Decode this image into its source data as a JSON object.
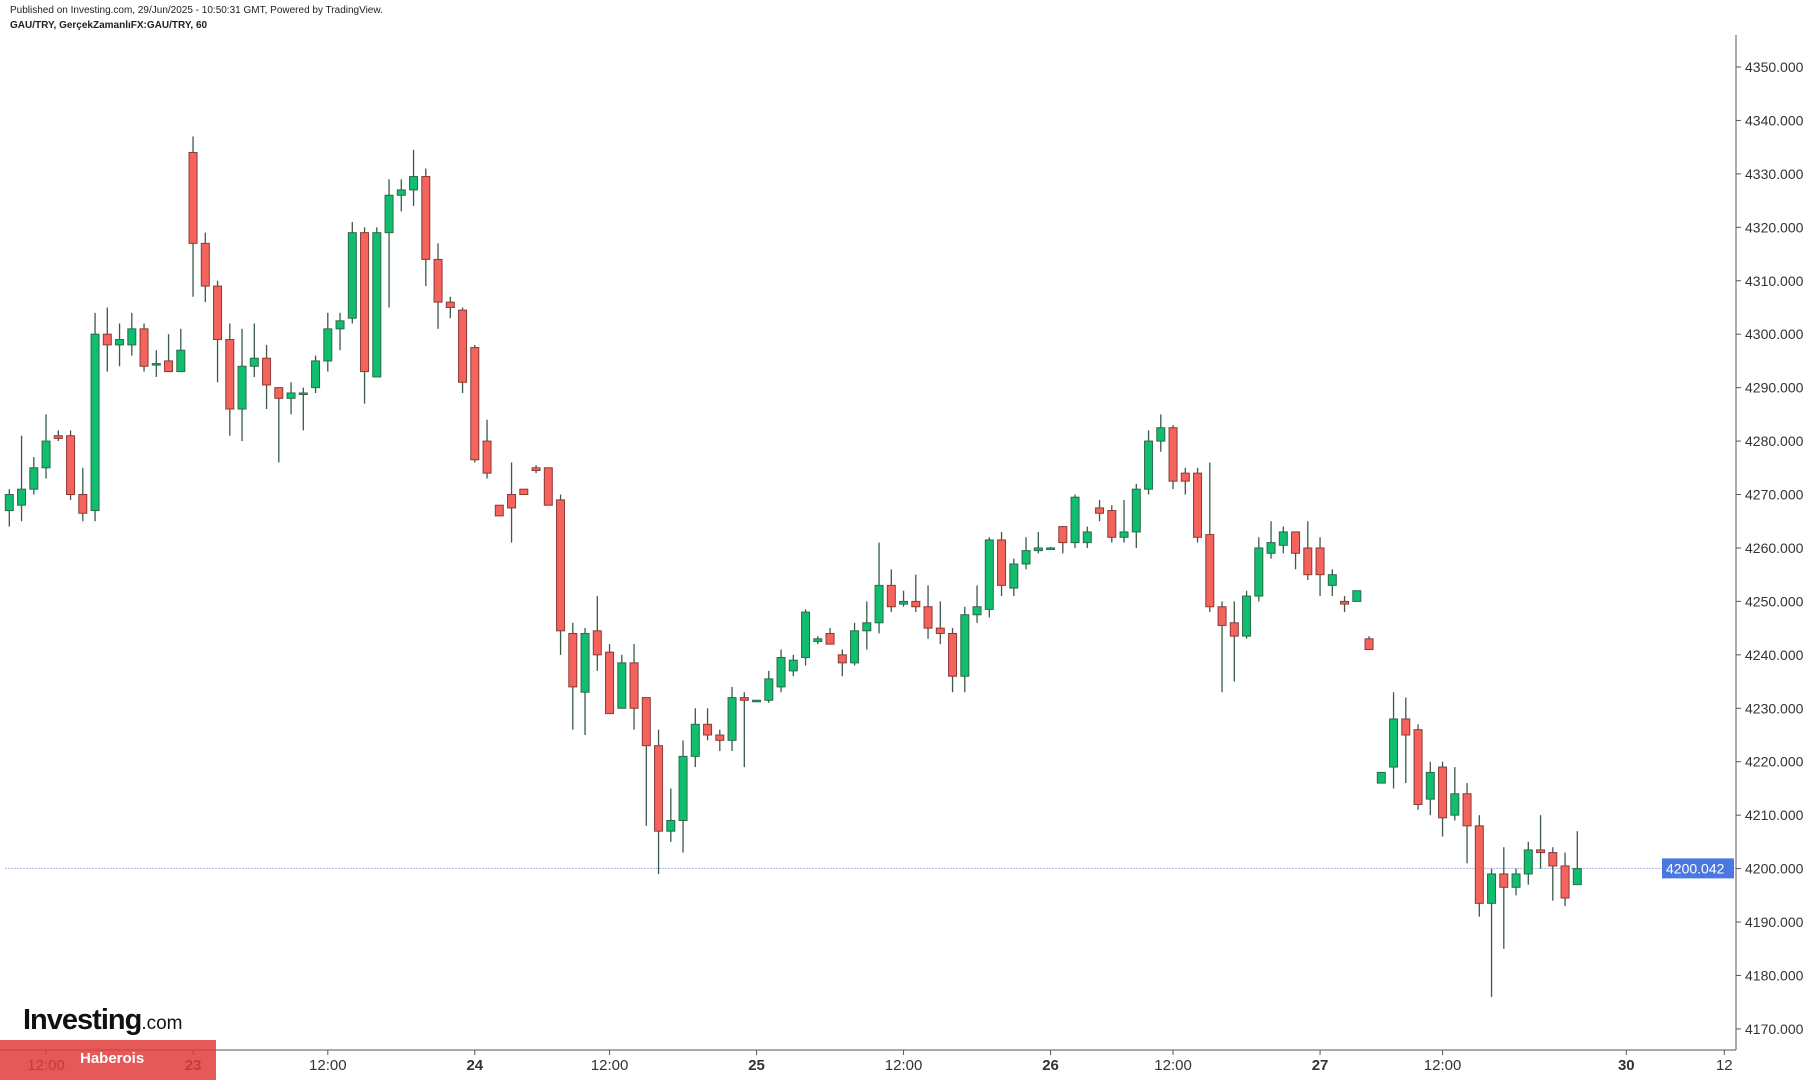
{
  "header": {
    "published": "Published on Investing.com, 29/Jun/2025 - 10:50:31 GMT, Powered by TradingView.",
    "symbol": "GAU/TRY, GerçekZamanlıFX:GAU/TRY, 60"
  },
  "logo": {
    "brand": "Investing",
    "suffix": ".com"
  },
  "watermark": "Haberois",
  "colors": {
    "up": "#0fbf6f",
    "down": "#f4645c",
    "wick": "#3a5a4a",
    "last_price": "#4a78e0"
  },
  "chart_data": {
    "type": "candlestick",
    "title": "GAU/TRY, 60",
    "ylim": [
      4165,
      4355
    ],
    "y_ticks": [
      "4350.000",
      "4340.000",
      "4330.000",
      "4320.000",
      "4310.000",
      "4300.000",
      "4290.000",
      "4280.000",
      "4270.000",
      "4260.000",
      "4250.000",
      "4240.000",
      "4230.000",
      "4220.000",
      "4210.000",
      "4200.000",
      "4190.000",
      "4180.000",
      "4170.000"
    ],
    "y_tick_values": [
      4350,
      4340,
      4330,
      4320,
      4310,
      4300,
      4290,
      4280,
      4270,
      4260,
      4250,
      4240,
      4230,
      4220,
      4210,
      4200,
      4190,
      4180,
      4170
    ],
    "last_price": 4200.042,
    "last_price_label": "4200.042",
    "x_ticks": [
      {
        "label": "12:00",
        "index": 3,
        "bold": false
      },
      {
        "label": "23",
        "index": 15,
        "bold": true
      },
      {
        "label": "12:00",
        "index": 26,
        "bold": false
      },
      {
        "label": "24",
        "index": 38,
        "bold": true
      },
      {
        "label": "12:00",
        "index": 49,
        "bold": false
      },
      {
        "label": "25",
        "index": 61,
        "bold": true
      },
      {
        "label": "12:00",
        "index": 73,
        "bold": false
      },
      {
        "label": "26",
        "index": 85,
        "bold": true
      },
      {
        "label": "12:00",
        "index": 95,
        "bold": false
      },
      {
        "label": "27",
        "index": 107,
        "bold": true
      },
      {
        "label": "12:00",
        "index": 117,
        "bold": false
      },
      {
        "label": "30",
        "index": 132,
        "bold": true
      },
      {
        "label": "12",
        "index": 140,
        "bold": false
      }
    ],
    "ohlc": [
      [
        4267,
        4271,
        4264,
        4270
      ],
      [
        4268,
        4281,
        4265,
        4271
      ],
      [
        4271,
        4277,
        4270,
        4275
      ],
      [
        4275,
        4285,
        4273,
        4280
      ],
      [
        4281,
        4282,
        4280,
        4280.5
      ],
      [
        4281,
        4282,
        4269,
        4270
      ],
      [
        4270,
        4275,
        4265,
        4266.5
      ],
      [
        4267,
        4304,
        4265,
        4300
      ],
      [
        4300,
        4305,
        4293,
        4298
      ],
      [
        4298,
        4302,
        4294,
        4299
      ],
      [
        4298,
        4304,
        4296,
        4301
      ],
      [
        4301,
        4302,
        4293,
        4294
      ],
      [
        4294.5,
        4297,
        4292,
        4294.5
      ],
      [
        4295,
        4300,
        4293,
        4293
      ],
      [
        4293,
        4301,
        4293,
        4297
      ],
      [
        4334,
        4337,
        4307,
        4317
      ],
      [
        4317,
        4319,
        4306,
        4309
      ],
      [
        4309,
        4310,
        4291,
        4299
      ],
      [
        4299,
        4302,
        4281,
        4286
      ],
      [
        4286,
        4301,
        4280,
        4294
      ],
      [
        4294,
        4302,
        4292,
        4295.5
      ],
      [
        4295.5,
        4298,
        4286,
        4290.5
      ],
      [
        4290,
        4290,
        4276,
        4288
      ],
      [
        4288,
        4291,
        4285,
        4289
      ],
      [
        4289,
        4290,
        4282,
        4289
      ],
      [
        4290,
        4296,
        4289,
        4295
      ],
      [
        4295,
        4304,
        4293,
        4301
      ],
      [
        4301,
        4304,
        4297,
        4302.5
      ],
      [
        4303,
        4321,
        4302,
        4319
      ],
      [
        4319,
        4320,
        4287,
        4293
      ],
      [
        4292,
        4320,
        4292,
        4319
      ],
      [
        4319,
        4329,
        4305,
        4326
      ],
      [
        4326,
        4329,
        4323,
        4327
      ],
      [
        4327,
        4334.5,
        4324,
        4329.5
      ],
      [
        4329.5,
        4331,
        4309,
        4314
      ],
      [
        4314,
        4317,
        4301,
        4306
      ],
      [
        4306,
        4307,
        4303,
        4305
      ],
      [
        4304.5,
        4305,
        4289,
        4291
      ],
      [
        4297.5,
        4298,
        4276,
        4276.5
      ],
      [
        4280,
        4284,
        4273,
        4274
      ],
      [
        4268,
        4268,
        4266,
        4266
      ],
      [
        4270,
        4276,
        4261,
        4267.5
      ],
      [
        4271,
        4271,
        4270,
        4270
      ],
      [
        4275,
        4275.5,
        4274,
        4274.5
      ],
      [
        4275,
        4275,
        4268,
        4268
      ],
      [
        4269,
        4270,
        4240,
        4244.5
      ],
      [
        4244,
        4246,
        4226,
        4234
      ],
      [
        4233,
        4245,
        4225,
        4244
      ],
      [
        4244.5,
        4251,
        4237,
        4240
      ],
      [
        4240.5,
        4242,
        4229,
        4229
      ],
      [
        4230,
        4240,
        4230,
        4238.5
      ],
      [
        4238.5,
        4242,
        4226,
        4230
      ],
      [
        4232,
        4232,
        4208,
        4223
      ],
      [
        4223,
        4226,
        4199,
        4207
      ],
      [
        4207,
        4215,
        4205,
        4209
      ],
      [
        4209,
        4224,
        4203,
        4221
      ],
      [
        4221,
        4230,
        4219,
        4227
      ],
      [
        4227,
        4230,
        4224,
        4225
      ],
      [
        4225,
        4226,
        4222,
        4224
      ],
      [
        4224,
        4234,
        4222,
        4232
      ],
      [
        4232,
        4233,
        4219,
        4231.5
      ],
      [
        4231.5,
        4231.6,
        4231.4,
        4231.5
      ],
      [
        4231.5,
        4237,
        4231,
        4235.5
      ],
      [
        4234,
        4241,
        4233,
        4239.5
      ],
      [
        4237,
        4240,
        4236,
        4239
      ],
      [
        4239.5,
        4248.5,
        4238,
        4248
      ],
      [
        4242.5,
        4243.5,
        4242,
        4243
      ],
      [
        4244,
        4245,
        4242,
        4242
      ],
      [
        4240,
        4241,
        4236,
        4238.5
      ],
      [
        4238.5,
        4246,
        4238,
        4244.5
      ],
      [
        4244.5,
        4250,
        4241,
        4246
      ],
      [
        4246,
        4261,
        4244,
        4253
      ],
      [
        4253,
        4256,
        4248,
        4249
      ],
      [
        4249.5,
        4252,
        4249,
        4250
      ],
      [
        4250,
        4255,
        4248,
        4249
      ],
      [
        4249,
        4253,
        4243,
        4245
      ],
      [
        4245,
        4250,
        4242,
        4244
      ],
      [
        4244,
        4245,
        4233,
        4236
      ],
      [
        4236,
        4249,
        4233,
        4247.5
      ],
      [
        4247.5,
        4253,
        4246,
        4249
      ],
      [
        4248.5,
        4262,
        4247,
        4261.5
      ],
      [
        4261.5,
        4263,
        4251,
        4253
      ],
      [
        4252.5,
        4258,
        4251,
        4257
      ],
      [
        4257,
        4262,
        4256,
        4259.5
      ],
      [
        4259.5,
        4263,
        4259,
        4260
      ],
      [
        4260,
        4260.2,
        4259.8,
        4260
      ],
      [
        4264,
        4264,
        4259,
        4261
      ],
      [
        4261,
        4270,
        4260,
        4269.5
      ],
      [
        4261,
        4264,
        4260,
        4263
      ],
      [
        4267.5,
        4269,
        4265,
        4266.5
      ],
      [
        4267,
        4268,
        4261,
        4262
      ],
      [
        4262,
        4269,
        4261,
        4263
      ],
      [
        4263,
        4272,
        4260,
        4271
      ],
      [
        4271,
        4282,
        4270,
        4280
      ],
      [
        4280,
        4285,
        4278,
        4282.5
      ],
      [
        4282.5,
        4283,
        4271,
        4272.5
      ],
      [
        4274,
        4275,
        4270,
        4272.5
      ],
      [
        4274,
        4275,
        4261,
        4262
      ],
      [
        4262.5,
        4276,
        4248,
        4249
      ],
      [
        4249,
        4250,
        4233,
        4245.5
      ],
      [
        4246,
        4250,
        4235,
        4243.5
      ],
      [
        4243.5,
        4252,
        4243,
        4251
      ],
      [
        4251,
        4262,
        4250,
        4260
      ],
      [
        4259,
        4265,
        4258,
        4261
      ],
      [
        4260.5,
        4264,
        4259,
        4263
      ],
      [
        4263,
        4263,
        4256,
        4259
      ],
      [
        4260,
        4265,
        4254,
        4255
      ],
      [
        4260,
        4262,
        4251,
        4255
      ],
      [
        4253,
        4256,
        4251,
        4255
      ],
      [
        4250,
        4251,
        4248,
        4249.5
      ],
      [
        4250,
        4252,
        4250,
        4252
      ],
      [
        4243,
        4243.5,
        4241,
        4241
      ],
      [
        4216,
        4218,
        4216,
        4218
      ],
      [
        4219,
        4233,
        4215,
        4228
      ],
      [
        4228,
        4232,
        4216,
        4225
      ],
      [
        4226,
        4227,
        4211,
        4212
      ],
      [
        4213,
        4220,
        4210,
        4218
      ],
      [
        4219,
        4220,
        4206,
        4209.5
      ],
      [
        4210,
        4219,
        4209,
        4214
      ],
      [
        4214,
        4216,
        4201,
        4208
      ],
      [
        4208,
        4210,
        4191,
        4193.5
      ],
      [
        4193.5,
        4200,
        4176,
        4199
      ],
      [
        4199,
        4204,
        4185,
        4196.5
      ],
      [
        4196.5,
        4200,
        4195,
        4199
      ],
      [
        4199,
        4205,
        4197,
        4203.5
      ],
      [
        4203.5,
        4210,
        4200,
        4203
      ],
      [
        4203,
        4204,
        4194,
        4200.5
      ],
      [
        4200.5,
        4203,
        4193,
        4194.5
      ],
      [
        4197,
        4207,
        4197,
        4200
      ]
    ]
  }
}
